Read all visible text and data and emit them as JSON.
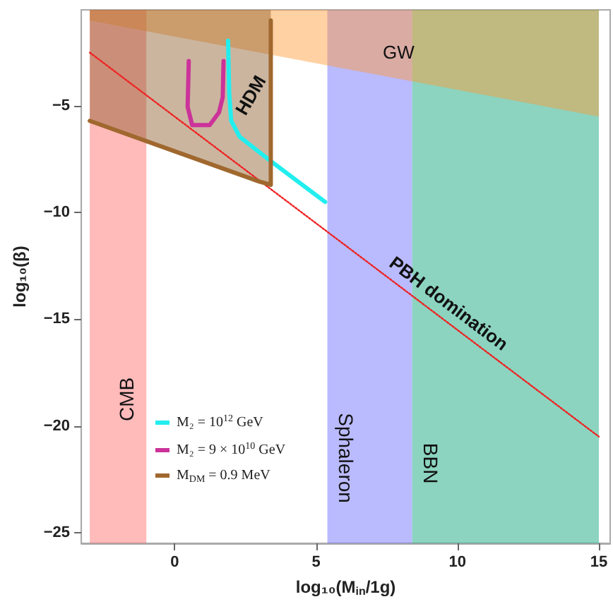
{
  "chart_data": {
    "type": "line",
    "xlabel": "log₁₀(M$_{in}$/1g)",
    "ylabel": "log₁₀(β)",
    "xlim": [
      -3.3,
      15.4
    ],
    "ylim": [
      -25.5,
      -0.5
    ],
    "xticks": [
      0,
      5,
      10,
      15
    ],
    "yticks": [
      -25,
      -20,
      -15,
      -10,
      -5
    ],
    "legend": "bottom left",
    "marker": "none",
    "bands": [
      {
        "axis": "x",
        "from": -3,
        "to": -1,
        "label": "CMB",
        "color": "#ff6666"
      },
      {
        "axis": "x",
        "from": 5.4,
        "to": 8.4,
        "label": "Sphaleron",
        "color": "#6666ff"
      },
      {
        "axis": "x",
        "from": 8.4,
        "to": 15,
        "label": "BBN",
        "color": "#00a070"
      }
    ],
    "series": [
      {
        "type": "area",
        "color": "#ff9933",
        "x": [
          -3,
          15
        ],
        "values": [
          -1,
          -5.5
        ]
      },
      {
        "type": "area",
        "color": "#8b5a2b",
        "x": [
          -3,
          3.0,
          3.4
        ],
        "values": [
          -5.7,
          -8.55,
          -8.7
        ]
      },
      {
        "color": "#ee2222",
        "line_style": "dotted",
        "x": [
          -3,
          15
        ],
        "values": [
          -2.5,
          -20.5
        ]
      },
      {
        "name": "M₂ = 10$^{12}$ GeV",
        "color": "#22eeee",
        "line_style": "solid",
        "x": [
          1.89,
          1.93,
          2.0,
          2.3,
          3.36,
          5.32
        ],
        "values": [
          -1.95,
          -4.4,
          -5.7,
          -6.45,
          -7.55,
          -9.5
        ]
      },
      {
        "name": "M₂ = 9 × 10$^{10}$ GeV",
        "color": "#cc3399",
        "line_style": "solid",
        "x": [
          0.5,
          0.46,
          0.62,
          1.24,
          1.57,
          1.7,
          1.73
        ],
        "values": [
          -2.9,
          -5.05,
          -5.9,
          -5.9,
          -5.3,
          -4.6,
          -2.9
        ]
      },
      {
        "name": "M$_{DM}$ = 0.9 MeV",
        "color": "#a0682e",
        "line_style": "solid",
        "x": [
          -3,
          3.0,
          3.4,
          3.4
        ],
        "values": [
          -5.7,
          -8.55,
          -8.7,
          -1
        ]
      }
    ],
    "annotations": [
      "GW",
      "HDM",
      "PBH domination"
    ]
  }
}
